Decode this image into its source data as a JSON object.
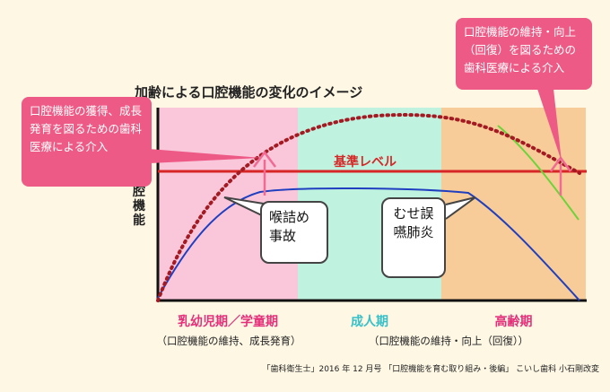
{
  "title": "加齢による口腔機能の変化のイメージ",
  "y_axis_label": "口腔機能",
  "baseline_label": "基準レベル",
  "periods": [
    {
      "label": "乳幼児期／学童期",
      "note": "（口腔機能の維持、成長発育）",
      "color": "#e4307a"
    },
    {
      "label": "成人期",
      "note": "",
      "color": "#38c0c8"
    },
    {
      "label": "高齢期",
      "note": "（口腔機能の維持・向上（回復））",
      "color": "#e4307a"
    }
  ],
  "callouts": {
    "left": "口腔機能の獲得、成長発育を図るための歯科医療による介入",
    "right": "口腔機能の維持・向上（回復）を図るための歯科医療による介入",
    "choking": "喉詰め事故",
    "aspiration": "むせ誤嚥肺炎"
  },
  "credit": "「歯科衛生士」2016 年 12 月号 「口腔機能を育む取り組み・後編」 こいし歯科 小石剛改変",
  "colors": {
    "baseline": "#d62626",
    "dotted_curve": "#a31a22",
    "blue_curve": "#1f3fc0",
    "green_curve": "#6cd43a",
    "arrow": "#f06a94",
    "zone_child": "#f9c6da",
    "zone_adult": "#bff2df",
    "zone_elder": "#f8cc99"
  }
}
